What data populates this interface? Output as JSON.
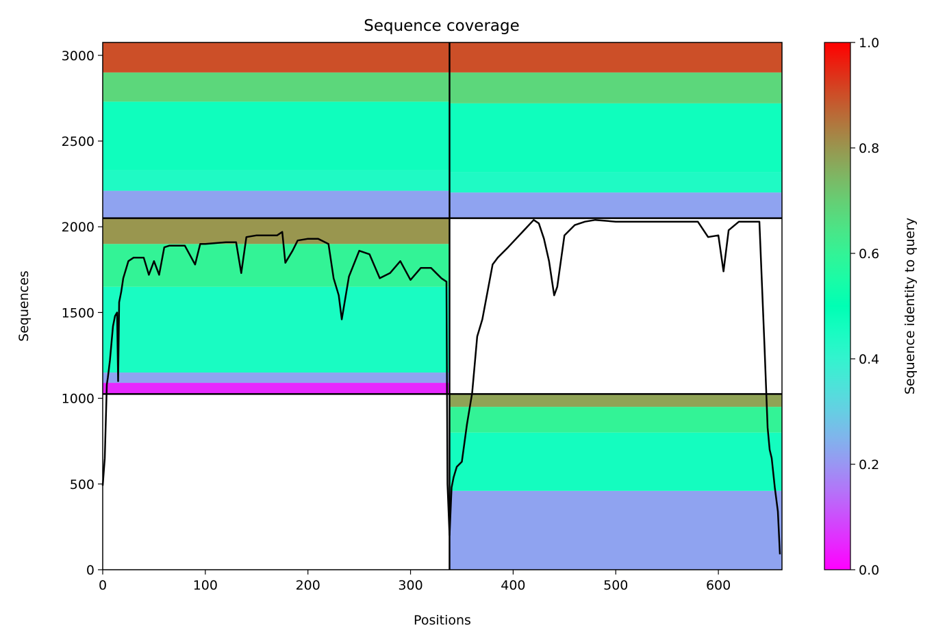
{
  "chart_data": {
    "type": "heatmap",
    "title": "Sequence coverage",
    "xlabel": "Positions",
    "ylabel": "Sequences",
    "xlim": [
      0,
      662
    ],
    "ylim": [
      0,
      3075
    ],
    "xticks": [
      0,
      100,
      200,
      300,
      400,
      500,
      600
    ],
    "yticks": [
      0,
      500,
      1000,
      1500,
      2000,
      2500,
      3000
    ],
    "colorbar": {
      "label": "Sequence identity to query",
      "range": [
        0,
        1
      ],
      "ticks": [
        "0.0",
        "0.2",
        "0.4",
        "0.6",
        "0.8",
        "1.0"
      ],
      "colormap": "rainbow"
    },
    "block_boundaries": {
      "x_split": 338,
      "y_splits": [
        1025,
        2050
      ]
    },
    "blocks": [
      {
        "x0": 0,
        "x1": 338,
        "y0": 2050,
        "y1": 3075,
        "ranges": [
          [
            2050,
            2210,
            0.22
          ],
          [
            2210,
            2330,
            0.44
          ],
          [
            2330,
            2730,
            0.47
          ],
          [
            2730,
            2900,
            0.68
          ],
          [
            2900,
            3075,
            0.9
          ]
        ]
      },
      {
        "x0": 338,
        "x1": 662,
        "y0": 2050,
        "y1": 3075,
        "ranges": [
          [
            2050,
            2200,
            0.22
          ],
          [
            2200,
            2320,
            0.44
          ],
          [
            2320,
            2720,
            0.47
          ],
          [
            2720,
            2900,
            0.68
          ],
          [
            2900,
            3075,
            0.9
          ]
        ]
      },
      {
        "x0": 0,
        "x1": 338,
        "y0": 1025,
        "y1": 2050,
        "ranges": [
          [
            1025,
            1090,
            0.05
          ],
          [
            1090,
            1150,
            0.22
          ],
          [
            1150,
            1650,
            0.45
          ],
          [
            1650,
            1900,
            0.6
          ],
          [
            1900,
            2050,
            0.8
          ]
        ]
      },
      {
        "x0": 338,
        "x1": 662,
        "y0": 0,
        "y1": 1025,
        "ranges": [
          [
            0,
            460,
            0.22
          ],
          [
            460,
            800,
            0.46
          ],
          [
            800,
            950,
            0.6
          ],
          [
            950,
            1025,
            0.78
          ]
        ]
      }
    ],
    "coverage_line": {
      "x": [
        0,
        2,
        4,
        5,
        7,
        10,
        12,
        14,
        15,
        16,
        18,
        20,
        25,
        30,
        40,
        45,
        50,
        55,
        60,
        65,
        70,
        80,
        90,
        95,
        100,
        120,
        130,
        135,
        140,
        150,
        170,
        175,
        178,
        185,
        190,
        200,
        210,
        220,
        225,
        230,
        233,
        240,
        250,
        260,
        270,
        280,
        290,
        300,
        310,
        320,
        330,
        335,
        336,
        338,
        340,
        342,
        345,
        350,
        355,
        360,
        365,
        370,
        380,
        385,
        395,
        420,
        425,
        430,
        435,
        440,
        443,
        450,
        460,
        470,
        480,
        500,
        520,
        540,
        560,
        580,
        590,
        600,
        605,
        610,
        620,
        630,
        640,
        645,
        648,
        650,
        652,
        655,
        658,
        660
      ],
      "y": [
        490,
        650,
        1080,
        1120,
        1220,
        1420,
        1480,
        1500,
        1100,
        1560,
        1620,
        1700,
        1800,
        1820,
        1820,
        1720,
        1800,
        1720,
        1880,
        1890,
        1890,
        1890,
        1780,
        1900,
        1900,
        1910,
        1910,
        1730,
        1940,
        1950,
        1950,
        1970,
        1790,
        1860,
        1920,
        1930,
        1930,
        1900,
        1700,
        1600,
        1460,
        1710,
        1860,
        1840,
        1700,
        1730,
        1800,
        1690,
        1760,
        1760,
        1700,
        1680,
        500,
        200,
        480,
        540,
        600,
        630,
        850,
        1030,
        1360,
        1460,
        1780,
        1820,
        1880,
        2040,
        2020,
        1930,
        1800,
        1600,
        1650,
        1950,
        2010,
        2030,
        2040,
        2030,
        2030,
        2030,
        2030,
        2030,
        1940,
        1950,
        1740,
        1980,
        2030,
        2030,
        2030,
        1300,
        830,
        700,
        650,
        480,
        340,
        90
      ]
    }
  }
}
